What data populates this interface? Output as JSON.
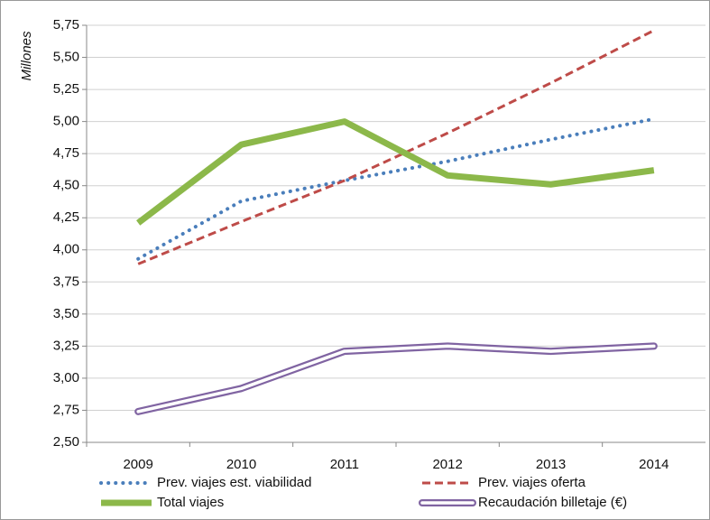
{
  "chart_data": {
    "type": "line",
    "y_axis_label": "Millones",
    "categories": [
      "2009",
      "2010",
      "2011",
      "2012",
      "2013",
      "2014"
    ],
    "series": [
      {
        "name": "Prev. viajes est. viabilidad",
        "color": "#4a7ebb",
        "style": "dotted",
        "values": [
          3.93,
          4.38,
          4.54,
          4.69,
          4.86,
          5.02
        ]
      },
      {
        "name": "Prev. viajes oferta",
        "color": "#be4b48",
        "style": "dashed",
        "values": [
          3.89,
          4.22,
          4.54,
          4.91,
          5.3,
          5.71
        ]
      },
      {
        "name": "Total viajes",
        "color": "#8cb84a",
        "style": "solid",
        "values": [
          4.21,
          4.82,
          5.0,
          4.58,
          4.51,
          4.62
        ]
      },
      {
        "name": "Recaudación billetaje (€)",
        "color": "#8064a2",
        "style": "double",
        "values": [
          2.74,
          2.92,
          3.21,
          3.25,
          3.21,
          3.25
        ]
      }
    ],
    "ylim": [
      2.5,
      5.75
    ],
    "yticks": [
      {
        "value": 2.5,
        "label": "2,50"
      },
      {
        "value": 2.75,
        "label": "2,75"
      },
      {
        "value": 3.0,
        "label": "3,00"
      },
      {
        "value": 3.25,
        "label": "3,25"
      },
      {
        "value": 3.5,
        "label": "3,50"
      },
      {
        "value": 3.75,
        "label": "3,75"
      },
      {
        "value": 4.0,
        "label": "4,00"
      },
      {
        "value": 4.25,
        "label": "4,25"
      },
      {
        "value": 4.5,
        "label": "4,50"
      },
      {
        "value": 4.75,
        "label": "4,75"
      },
      {
        "value": 5.0,
        "label": "5,00"
      },
      {
        "value": 5.25,
        "label": "5,25"
      },
      {
        "value": 5.5,
        "label": "5,50"
      },
      {
        "value": 5.75,
        "label": "5,75"
      }
    ],
    "grid": true
  }
}
